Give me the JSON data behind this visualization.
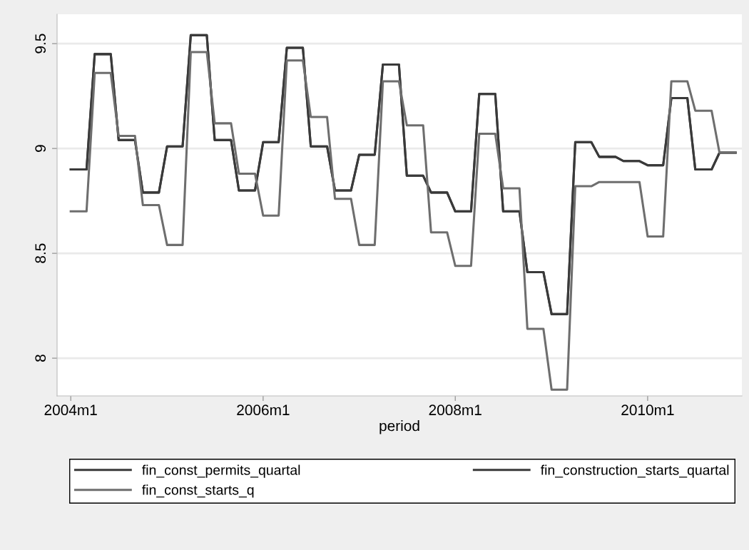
{
  "chart_data": {
    "type": "line",
    "xlabel": "period",
    "x": [
      "2004-01",
      "2004-02",
      "2004-03",
      "2004-04",
      "2004-05",
      "2004-06",
      "2004-07",
      "2004-08",
      "2004-09",
      "2004-10",
      "2004-11",
      "2004-12",
      "2005-01",
      "2005-02",
      "2005-03",
      "2005-04",
      "2005-05",
      "2005-06",
      "2005-07",
      "2005-08",
      "2005-09",
      "2005-10",
      "2005-11",
      "2005-12",
      "2006-01",
      "2006-02",
      "2006-03",
      "2006-04",
      "2006-05",
      "2006-06",
      "2006-07",
      "2006-08",
      "2006-09",
      "2006-10",
      "2006-11",
      "2006-12",
      "2007-01",
      "2007-02",
      "2007-03",
      "2007-04",
      "2007-05",
      "2007-06",
      "2007-07",
      "2007-08",
      "2007-09",
      "2007-10",
      "2007-11",
      "2007-12",
      "2008-01",
      "2008-02",
      "2008-03",
      "2008-04",
      "2008-05",
      "2008-06",
      "2008-07",
      "2008-08",
      "2008-09",
      "2008-10",
      "2008-11",
      "2008-12",
      "2009-01",
      "2009-02",
      "2009-03",
      "2009-04",
      "2009-05",
      "2009-06",
      "2009-07",
      "2009-08",
      "2009-09",
      "2009-10",
      "2009-11",
      "2009-12",
      "2010-01",
      "2010-02",
      "2010-03",
      "2010-04",
      "2010-05",
      "2010-06",
      "2010-07",
      "2010-08",
      "2010-09",
      "2010-10",
      "2010-11",
      "2010-12"
    ],
    "series": [
      {
        "name": "fin_const_permits_quartal",
        "color": "#3a3a3a",
        "values": [
          8.9,
          8.9,
          8.9,
          9.45,
          9.45,
          9.45,
          9.04,
          9.04,
          9.04,
          8.79,
          8.79,
          8.79,
          9.01,
          9.01,
          9.01,
          9.54,
          9.54,
          9.54,
          9.04,
          9.04,
          9.04,
          8.8,
          8.8,
          8.8,
          9.03,
          9.03,
          9.03,
          9.48,
          9.48,
          9.48,
          9.01,
          9.01,
          9.01,
          8.8,
          8.8,
          8.8,
          8.97,
          8.97,
          8.97,
          9.4,
          9.4,
          9.4,
          8.87,
          8.87,
          8.87,
          8.79,
          8.79,
          8.79,
          8.7,
          8.7,
          8.7,
          9.26,
          9.26,
          9.26,
          8.7,
          8.7,
          8.7,
          8.41,
          8.41,
          8.41,
          8.21,
          8.21,
          8.21,
          9.03,
          9.03,
          9.03,
          8.96,
          8.96,
          8.96,
          8.94,
          8.94,
          8.94,
          8.92,
          8.92,
          8.92,
          9.24,
          9.24,
          9.24,
          8.9,
          8.9,
          8.9,
          8.98,
          8.98,
          8.98
        ]
      },
      {
        "name": "fin_construction_starts_quartal",
        "color": "#3a3a3a",
        "values": [
          8.9,
          8.9,
          8.9,
          9.45,
          9.45,
          9.45,
          9.04,
          9.04,
          9.04,
          8.79,
          8.79,
          8.79,
          9.01,
          9.01,
          9.01,
          9.54,
          9.54,
          9.54,
          9.04,
          9.04,
          9.04,
          8.8,
          8.8,
          8.8,
          9.03,
          9.03,
          9.03,
          9.48,
          9.48,
          9.48,
          9.01,
          9.01,
          9.01,
          8.8,
          8.8,
          8.8,
          8.97,
          8.97,
          8.97,
          9.4,
          9.4,
          9.4,
          8.87,
          8.87,
          8.87,
          8.79,
          8.79,
          8.79,
          8.7,
          8.7,
          8.7,
          9.26,
          9.26,
          9.26,
          8.7,
          8.7,
          8.7,
          8.41,
          8.41,
          8.41,
          8.21,
          8.21,
          8.21,
          9.03,
          9.03,
          9.03,
          8.96,
          8.96,
          8.96,
          8.94,
          8.94,
          8.94,
          8.92,
          8.92,
          8.92,
          9.24,
          9.24,
          9.24,
          8.9,
          8.9,
          8.9,
          8.98,
          8.98,
          8.98
        ]
      },
      {
        "name": "fin_const_starts_q",
        "color": "#6e6e6e",
        "values": [
          8.7,
          8.7,
          8.7,
          9.36,
          9.36,
          9.36,
          9.06,
          9.06,
          9.06,
          8.73,
          8.73,
          8.73,
          8.54,
          8.54,
          8.54,
          9.46,
          9.46,
          9.46,
          9.12,
          9.12,
          9.12,
          8.88,
          8.88,
          8.88,
          8.68,
          8.68,
          8.68,
          9.42,
          9.42,
          9.42,
          9.15,
          9.15,
          9.15,
          8.76,
          8.76,
          8.76,
          8.54,
          8.54,
          8.54,
          9.32,
          9.32,
          9.32,
          9.11,
          9.11,
          9.11,
          8.6,
          8.6,
          8.6,
          8.44,
          8.44,
          8.44,
          9.07,
          9.07,
          9.07,
          8.81,
          8.81,
          8.81,
          8.14,
          8.14,
          8.14,
          7.85,
          7.85,
          7.85,
          8.82,
          8.82,
          8.82,
          8.84,
          8.84,
          8.84,
          8.84,
          8.84,
          8.84,
          8.58,
          8.58,
          8.58,
          9.32,
          9.32,
          9.32,
          9.18,
          9.18,
          9.18,
          8.98,
          8.98,
          8.98
        ]
      }
    ],
    "xlim": [
      "2003-11-10",
      "2010-12-25"
    ],
    "xticks": [
      {
        "value": "2004-01",
        "label": "2004m1"
      },
      {
        "value": "2006-01",
        "label": "2006m1"
      },
      {
        "value": "2008-01",
        "label": "2008m1"
      },
      {
        "value": "2010-01",
        "label": "2010m1"
      }
    ],
    "ylim": [
      7.82,
      9.64
    ],
    "yticks": [
      8,
      8.5,
      9,
      9.5
    ],
    "grid": "y",
    "legend": "bottom",
    "marker": "none",
    "line_style": "solid"
  }
}
